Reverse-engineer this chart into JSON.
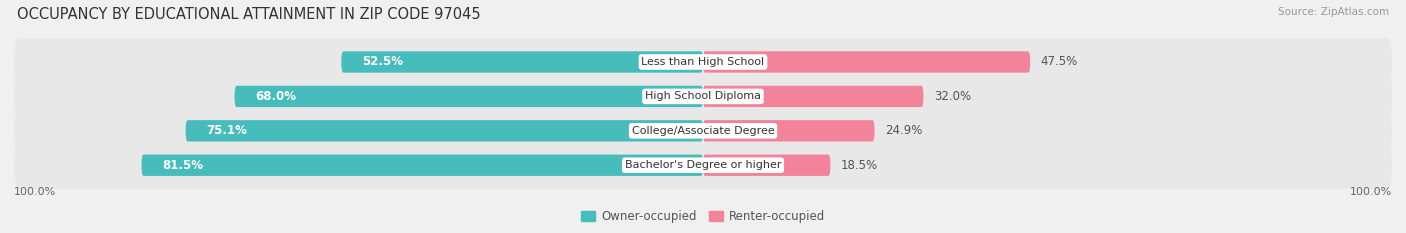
{
  "title": "OCCUPANCY BY EDUCATIONAL ATTAINMENT IN ZIP CODE 97045",
  "source": "Source: ZipAtlas.com",
  "categories": [
    "Less than High School",
    "High School Diploma",
    "College/Associate Degree",
    "Bachelor's Degree or higher"
  ],
  "owner_values": [
    52.5,
    68.0,
    75.1,
    81.5
  ],
  "renter_values": [
    47.5,
    32.0,
    24.9,
    18.5
  ],
  "owner_color": "#47BCBC",
  "renter_color": "#F2839A",
  "owner_label": "Owner-occupied",
  "renter_label": "Renter-occupied",
  "bg_color": "#f0f0f0",
  "row_bg_color": "#e8e8e8",
  "title_fontsize": 10.5,
  "value_fontsize": 8.5,
  "cat_fontsize": 8.0,
  "tick_fontsize": 8.0,
  "source_fontsize": 7.5,
  "bar_height": 0.62
}
